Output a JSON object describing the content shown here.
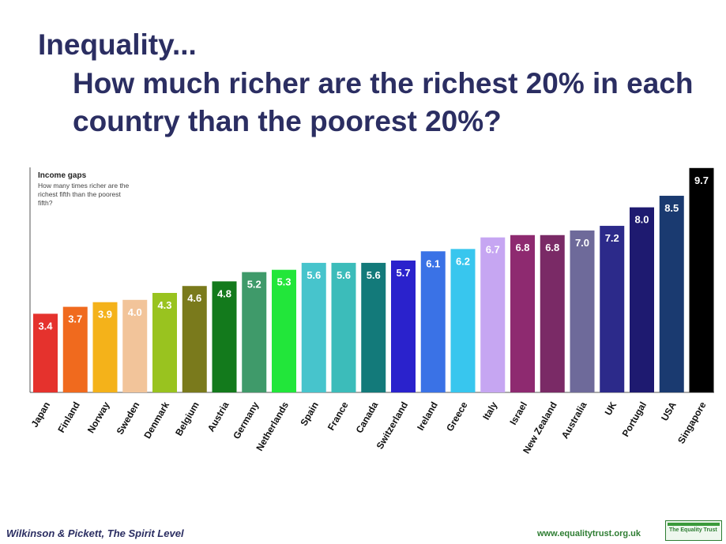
{
  "header": {
    "title_line1": "Inequality...",
    "title_line2": "How much richer are the richest 20% in each country than the poorest 20%?"
  },
  "chart_data": {
    "type": "bar",
    "title": "Income gaps",
    "subtitle": "How many times richer are the richest fifth than the poorest fifth?",
    "xlabel": "",
    "ylabel": "",
    "ylim": [
      0,
      10
    ],
    "grid": false,
    "legend": "none",
    "categories": [
      "Japan",
      "Finland",
      "Norway",
      "Sweden",
      "Denmark",
      "Belgium",
      "Austria",
      "Germany",
      "Netherlands",
      "Spain",
      "France",
      "Canada",
      "Switzerland",
      "Ireland",
      "Greece",
      "Italy",
      "Israel",
      "New Zealand",
      "Australia",
      "UK",
      "Portugal",
      "USA",
      "Singapore"
    ],
    "values": [
      3.4,
      3.7,
      3.9,
      4.0,
      4.3,
      4.6,
      4.8,
      5.2,
      5.3,
      5.6,
      5.6,
      5.6,
      5.7,
      6.1,
      6.2,
      6.7,
      6.8,
      6.8,
      7.0,
      7.2,
      8.0,
      8.5,
      9.7
    ],
    "value_labels": [
      "3.4",
      "3.7",
      "3.9",
      "4.0",
      "4.3",
      "4.6",
      "4.8",
      "5.2",
      "5.3",
      "5.6",
      "5.6",
      "5.6",
      "5.7",
      "6.1",
      "6.2",
      "6.7",
      "6.8",
      "6.8",
      "7.0",
      "7.2",
      "8.0",
      "8.5",
      "9.7"
    ],
    "colors": [
      "#e5322d",
      "#f06a1e",
      "#f4b21a",
      "#f2c49a",
      "#99c31f",
      "#7a7a1c",
      "#137a1c",
      "#3f9a6a",
      "#22e63a",
      "#47c4cc",
      "#3cbcba",
      "#137a7a",
      "#2a22cc",
      "#3a72e6",
      "#38c6ee",
      "#c6a6f2",
      "#8e2a70",
      "#7a2a66",
      "#6e6a9a",
      "#2c2a8a",
      "#1e1a70",
      "#1a3a70",
      "#000000"
    ]
  },
  "footer": {
    "credit_authors": "Wilkinson & Pickett, ",
    "credit_book": "The Spirit Level",
    "url": "www.equalitytrust.org.uk",
    "logo_text": "The Equality Trust"
  }
}
